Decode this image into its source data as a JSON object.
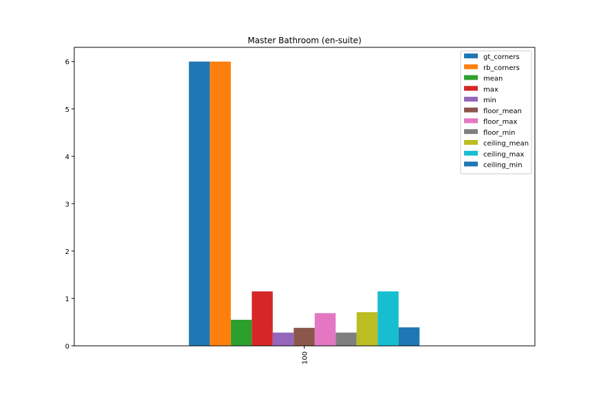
{
  "chart_data": {
    "type": "bar",
    "title": "Master Bathroom (en-suite)",
    "xlabel": "",
    "ylabel": "",
    "categories": [
      "100"
    ],
    "ylim": [
      0,
      6.3
    ],
    "yticks": [
      "0",
      "1",
      "2",
      "3",
      "4",
      "5",
      "6"
    ],
    "grid": false,
    "legend_position": "top-right",
    "series": [
      {
        "name": "gt_corners",
        "values": [
          6.0
        ],
        "color": "#1f77b4"
      },
      {
        "name": "rb_corners",
        "values": [
          6.0
        ],
        "color": "#ff7f0e"
      },
      {
        "name": "mean",
        "values": [
          0.55
        ],
        "color": "#2ca02c"
      },
      {
        "name": "max",
        "values": [
          1.15
        ],
        "color": "#d62728"
      },
      {
        "name": "min",
        "values": [
          0.28
        ],
        "color": "#9467bd"
      },
      {
        "name": "floor_mean",
        "values": [
          0.38
        ],
        "color": "#8c564b"
      },
      {
        "name": "floor_max",
        "values": [
          0.69
        ],
        "color": "#e377c2"
      },
      {
        "name": "floor_min",
        "values": [
          0.28
        ],
        "color": "#7f7f7f"
      },
      {
        "name": "ceiling_mean",
        "values": [
          0.71
        ],
        "color": "#bcbd22"
      },
      {
        "name": "ceiling_max",
        "values": [
          1.15
        ],
        "color": "#17becf"
      },
      {
        "name": "ceiling_min",
        "values": [
          0.39
        ],
        "color": "#1f77b4"
      }
    ]
  }
}
